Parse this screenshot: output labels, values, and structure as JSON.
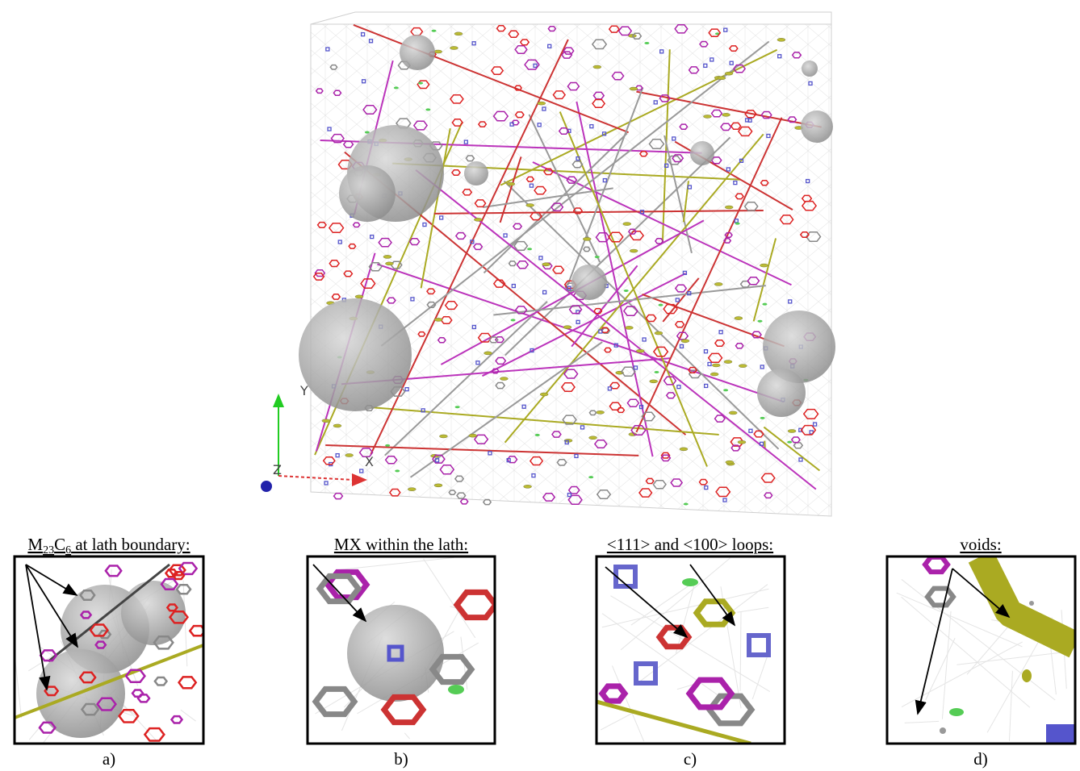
{
  "panels": [
    {
      "title_parts": [
        "M",
        "23",
        "C",
        "6",
        " at lath boundary:"
      ],
      "label": "a)"
    },
    {
      "title": "MX within the lath:",
      "label": "b)"
    },
    {
      "title": "<111> and <100> loops:",
      "label": "c)"
    },
    {
      "title": "voids:",
      "label": "d)"
    }
  ],
  "axes": {
    "x": "X",
    "y": "Y",
    "z": "Z"
  }
}
